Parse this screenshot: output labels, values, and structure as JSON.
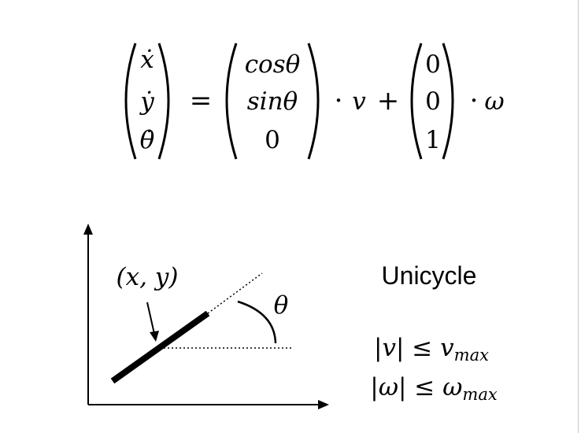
{
  "equation": {
    "lhs": [
      "ẋ",
      "ẏ",
      "θ̇"
    ],
    "equals": "=",
    "matrix1": [
      "cosθ",
      "sinθ",
      "0"
    ],
    "dot1": "·",
    "v": "v",
    "plus": "+",
    "matrix2": [
      "0",
      "0",
      "1"
    ],
    "dot2": "·",
    "omega": "ω"
  },
  "diagram": {
    "point_label": "(x, y)",
    "angle_label": "θ"
  },
  "title": "Unicycle",
  "constraints": [
    {
      "lhs": "|v| ≤ v",
      "sub": "max"
    },
    {
      "lhs": "|ω| ≤ ω",
      "sub": "max"
    }
  ]
}
